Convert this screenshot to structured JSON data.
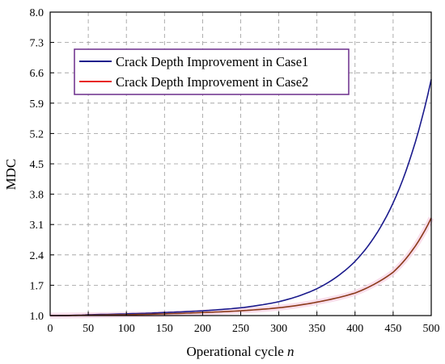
{
  "chart_data": {
    "type": "line",
    "title": "",
    "xlabel": "Operational cycle",
    "xlabel_var": "n",
    "ylabel": "MDC",
    "xlim": [
      0,
      500
    ],
    "ylim": [
      1.0,
      8.0
    ],
    "xticks": [
      0,
      50,
      100,
      150,
      200,
      250,
      300,
      350,
      400,
      450,
      500
    ],
    "yticks": [
      "1.0",
      "1.7",
      "2.4",
      "3.1",
      "3.8",
      "4.5",
      "5.2",
      "5.9",
      "6.6",
      "7.3",
      "8.0"
    ],
    "grid": true,
    "legend_position": "top-left",
    "series": [
      {
        "name": "Crack Depth Improvement in Case1",
        "color": "#1a1a8c",
        "x": [
          0,
          50,
          100,
          150,
          200,
          250,
          300,
          350,
          400,
          450,
          500
        ],
        "y": [
          1.0,
          1.02,
          1.04,
          1.07,
          1.11,
          1.18,
          1.32,
          1.62,
          2.25,
          3.6,
          6.45
        ]
      },
      {
        "name": "Crack Depth Improvement in Case2",
        "color": "#e8261c",
        "line_color": "#8b3a1a",
        "x": [
          0,
          50,
          100,
          150,
          200,
          250,
          300,
          350,
          400,
          450,
          500
        ],
        "y": [
          1.0,
          1.01,
          1.02,
          1.04,
          1.07,
          1.11,
          1.18,
          1.31,
          1.52,
          2.0,
          3.25
        ]
      }
    ]
  }
}
